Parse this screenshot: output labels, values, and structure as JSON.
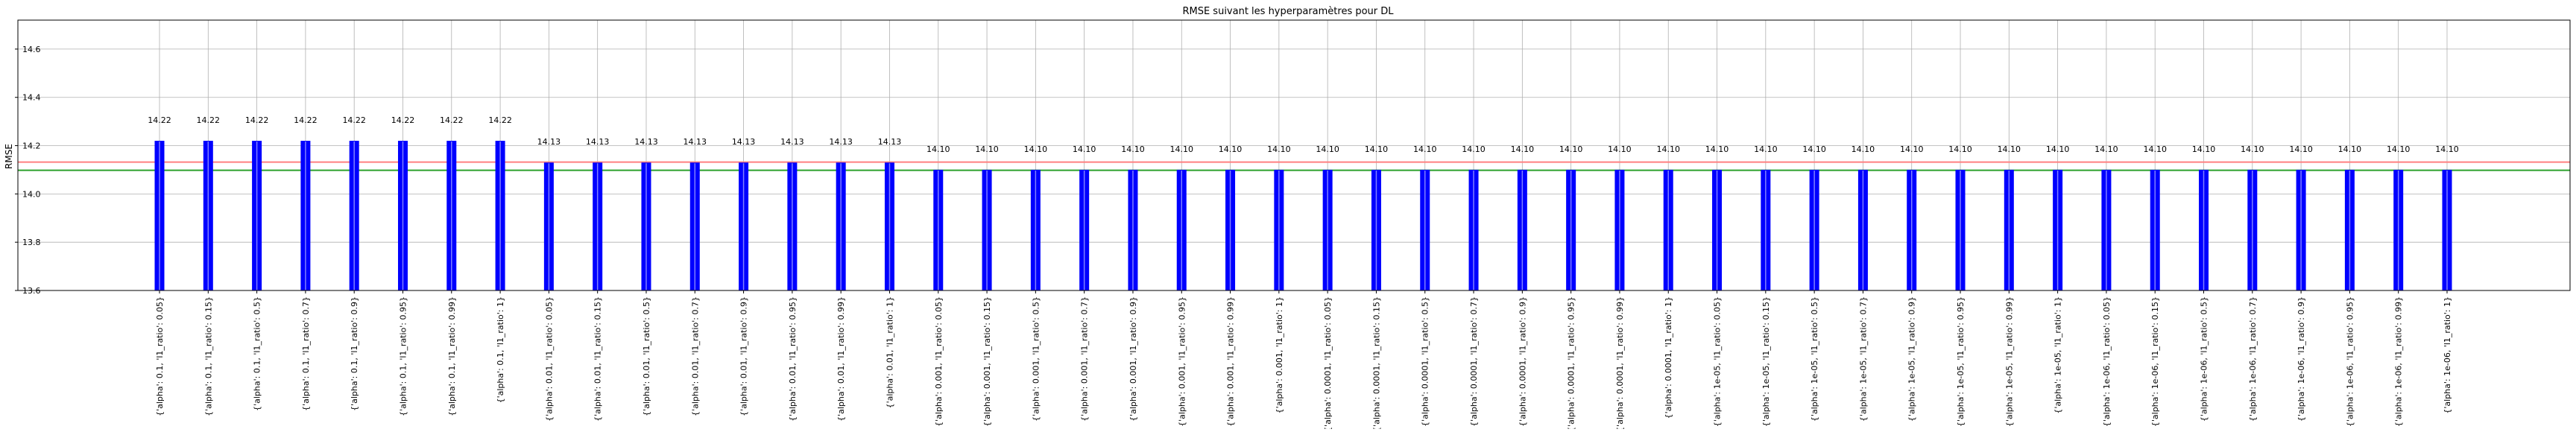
{
  "chart_data": {
    "type": "bar",
    "title": "RMSE suivant les hyperparamètres pour DL",
    "xlabel": "",
    "ylabel": "RMSE",
    "ylim": [
      13.6,
      14.72
    ],
    "yticks": [
      13.6,
      13.8,
      14.0,
      14.2,
      14.4,
      14.6
    ],
    "ytick_labels": [
      "13.6",
      "13.8",
      "14.0",
      "14.2",
      "14.4",
      "14.6"
    ],
    "grid": true,
    "bar_color": "#0000ff",
    "reference_lines": [
      {
        "value": 14.132,
        "color": "#ff8080"
      },
      {
        "value": 14.098,
        "color": "#2ca02c"
      }
    ],
    "categories": [
      "{'alpha': 0.1, 'l1_ratio': 0.05}",
      "{'alpha': 0.1, 'l1_ratio': 0.15}",
      "{'alpha': 0.1, 'l1_ratio': 0.5}",
      "{'alpha': 0.1, 'l1_ratio': 0.7}",
      "{'alpha': 0.1, 'l1_ratio': 0.9}",
      "{'alpha': 0.1, 'l1_ratio': 0.95}",
      "{'alpha': 0.1, 'l1_ratio': 0.99}",
      "{'alpha': 0.1, 'l1_ratio': 1}",
      "{'alpha': 0.01, 'l1_ratio': 0.05}",
      "{'alpha': 0.01, 'l1_ratio': 0.15}",
      "{'alpha': 0.01, 'l1_ratio': 0.5}",
      "{'alpha': 0.01, 'l1_ratio': 0.7}",
      "{'alpha': 0.01, 'l1_ratio': 0.9}",
      "{'alpha': 0.01, 'l1_ratio': 0.95}",
      "{'alpha': 0.01, 'l1_ratio': 0.99}",
      "{'alpha': 0.01, 'l1_ratio': 1}",
      "{'alpha': 0.001, 'l1_ratio': 0.05}",
      "{'alpha': 0.001, 'l1_ratio': 0.15}",
      "{'alpha': 0.001, 'l1_ratio': 0.5}",
      "{'alpha': 0.001, 'l1_ratio': 0.7}",
      "{'alpha': 0.001, 'l1_ratio': 0.9}",
      "{'alpha': 0.001, 'l1_ratio': 0.95}",
      "{'alpha': 0.001, 'l1_ratio': 0.99}",
      "{'alpha': 0.001, 'l1_ratio': 1}",
      "{'alpha': 0.0001, 'l1_ratio': 0.05}",
      "{'alpha': 0.0001, 'l1_ratio': 0.15}",
      "{'alpha': 0.0001, 'l1_ratio': 0.5}",
      "{'alpha': 0.0001, 'l1_ratio': 0.7}",
      "{'alpha': 0.0001, 'l1_ratio': 0.9}",
      "{'alpha': 0.0001, 'l1_ratio': 0.95}",
      "{'alpha': 0.0001, 'l1_ratio': 0.99}",
      "{'alpha': 0.0001, 'l1_ratio': 1}",
      "{'alpha': 1e-05, 'l1_ratio': 0.05}",
      "{'alpha': 1e-05, 'l1_ratio': 0.15}",
      "{'alpha': 1e-05, 'l1_ratio': 0.5}",
      "{'alpha': 1e-05, 'l1_ratio': 0.7}",
      "{'alpha': 1e-05, 'l1_ratio': 0.9}",
      "{'alpha': 1e-05, 'l1_ratio': 0.95}",
      "{'alpha': 1e-05, 'l1_ratio': 0.99}",
      "{'alpha': 1e-05, 'l1_ratio': 1}",
      "{'alpha': 1e-06, 'l1_ratio': 0.05}",
      "{'alpha': 1e-06, 'l1_ratio': 0.15}",
      "{'alpha': 1e-06, 'l1_ratio': 0.5}",
      "{'alpha': 1e-06, 'l1_ratio': 0.7}",
      "{'alpha': 1e-06, 'l1_ratio': 0.9}",
      "{'alpha': 1e-06, 'l1_ratio': 0.95}",
      "{'alpha': 1e-06, 'l1_ratio': 0.99}",
      "{'alpha': 1e-06, 'l1_ratio': 1}"
    ],
    "values": [
      14.22,
      14.22,
      14.22,
      14.22,
      14.22,
      14.22,
      14.22,
      14.22,
      14.13,
      14.13,
      14.13,
      14.13,
      14.13,
      14.13,
      14.13,
      14.13,
      14.1,
      14.1,
      14.1,
      14.1,
      14.1,
      14.1,
      14.1,
      14.1,
      14.1,
      14.1,
      14.1,
      14.1,
      14.1,
      14.1,
      14.1,
      14.1,
      14.1,
      14.1,
      14.1,
      14.1,
      14.1,
      14.1,
      14.1,
      14.1,
      14.1,
      14.1,
      14.1,
      14.1,
      14.1,
      14.1,
      14.1,
      14.1
    ],
    "data_labels": [
      "14.22",
      "14.22",
      "14.22",
      "14.22",
      "14.22",
      "14.22",
      "14.22",
      "14.22",
      "14.13",
      "14.13",
      "14.13",
      "14.13",
      "14.13",
      "14.13",
      "14.13",
      "14.13",
      "14.10",
      "14.10",
      "14.10",
      "14.10",
      "14.10",
      "14.10",
      "14.10",
      "14.10",
      "14.10",
      "14.10",
      "14.10",
      "14.10",
      "14.10",
      "14.10",
      "14.10",
      "14.10",
      "14.10",
      "14.10",
      "14.10",
      "14.10",
      "14.10",
      "14.10",
      "14.10",
      "14.10",
      "14.10",
      "14.10",
      "14.10",
      "14.10",
      "14.10",
      "14.10",
      "14.10",
      "14.10"
    ]
  }
}
